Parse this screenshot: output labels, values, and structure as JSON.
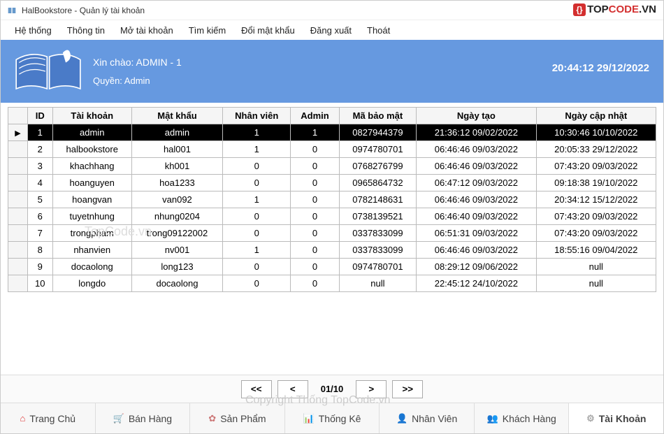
{
  "window": {
    "title": "HalBookstore - Quản lý tài khoản"
  },
  "brand": {
    "text_pre": "TOP",
    "text_mid": "CODE",
    "text_suf": ".VN"
  },
  "menu": {
    "items": [
      "Hệ thống",
      "Thông tin",
      "Mở tài khoản",
      "Tìm kiếm",
      "Đổi mật khẩu",
      "Đăng xuất",
      "Thoát"
    ]
  },
  "banner": {
    "hello": "Xin chào: ADMIN - 1",
    "role_label": "Quyền: Admin",
    "clock": "20:44:12 29/12/2022",
    "bg_color": "#6699e0"
  },
  "grid": {
    "columns": [
      "ID",
      "Tài khoản",
      "Mật khẩu",
      "Nhân viên",
      "Admin",
      "Mã bảo mật",
      "Ngày tạo",
      "Ngày cập nhật"
    ],
    "selected_row_index": 0,
    "rows": [
      [
        "1",
        "admin",
        "admin",
        "1",
        "1",
        "0827944379",
        "21:36:12 09/02/2022",
        "10:30:46 10/10/2022"
      ],
      [
        "2",
        "halbookstore",
        "hal001",
        "1",
        "0",
        "0974780701",
        "06:46:46 09/03/2022",
        "20:05:33 29/12/2022"
      ],
      [
        "3",
        "khachhang",
        "kh001",
        "0",
        "0",
        "0768276799",
        "06:46:46 09/03/2022",
        "07:43:20 09/03/2022"
      ],
      [
        "4",
        "hoanguyen",
        "hoa1233",
        "0",
        "0",
        "0965864732",
        "06:47:12 09/03/2022",
        "09:18:38 19/10/2022"
      ],
      [
        "5",
        "hoangvan",
        "van092",
        "1",
        "0",
        "0782148631",
        "06:46:46 09/03/2022",
        "20:34:12 15/12/2022"
      ],
      [
        "6",
        "tuyetnhung",
        "nhung0204",
        "0",
        "0",
        "0738139521",
        "06:46:40 09/03/2022",
        "07:43:20 09/03/2022"
      ],
      [
        "7",
        "trongpham",
        "trong09122002",
        "0",
        "0",
        "0337833099",
        "06:51:31 09/03/2022",
        "07:43:20 09/03/2022"
      ],
      [
        "8",
        "nhanvien",
        "nv001",
        "1",
        "0",
        "0337833099",
        "06:46:46 09/03/2022",
        "18:55:16 09/04/2022"
      ],
      [
        "9",
        "docaolong",
        "long123",
        "0",
        "0",
        "0974780701",
        "08:29:12 09/06/2022",
        "null"
      ],
      [
        "10",
        "longdo",
        "docaolong",
        "0",
        "0",
        "null",
        "22:45:12 24/10/2022",
        "null"
      ]
    ]
  },
  "pager": {
    "first": "<<",
    "prev": "<",
    "label": "01/10",
    "next": ">",
    "last": ">>"
  },
  "tabs": {
    "items": [
      {
        "label": "Trang Chủ",
        "icon": "⌂",
        "icon_class": "ticon-home"
      },
      {
        "label": "Bán Hàng",
        "icon": "🛒",
        "icon_class": "ticon-sale"
      },
      {
        "label": "Sản Phẩm",
        "icon": "✿",
        "icon_class": "ticon-prod"
      },
      {
        "label": "Thống Kê",
        "icon": "📊",
        "icon_class": "ticon-stat"
      },
      {
        "label": "Nhân Viên",
        "icon": "👤",
        "icon_class": "ticon-emp"
      },
      {
        "label": "Khách Hàng",
        "icon": "👥",
        "icon_class": "ticon-cust"
      },
      {
        "label": "Tài Khoản",
        "icon": "⚙",
        "icon_class": "ticon-acc"
      }
    ],
    "active_index": 6
  },
  "watermarks": {
    "wm1": "TopCode.vn",
    "wm2": "Copyright Thống TopCode.vn"
  }
}
